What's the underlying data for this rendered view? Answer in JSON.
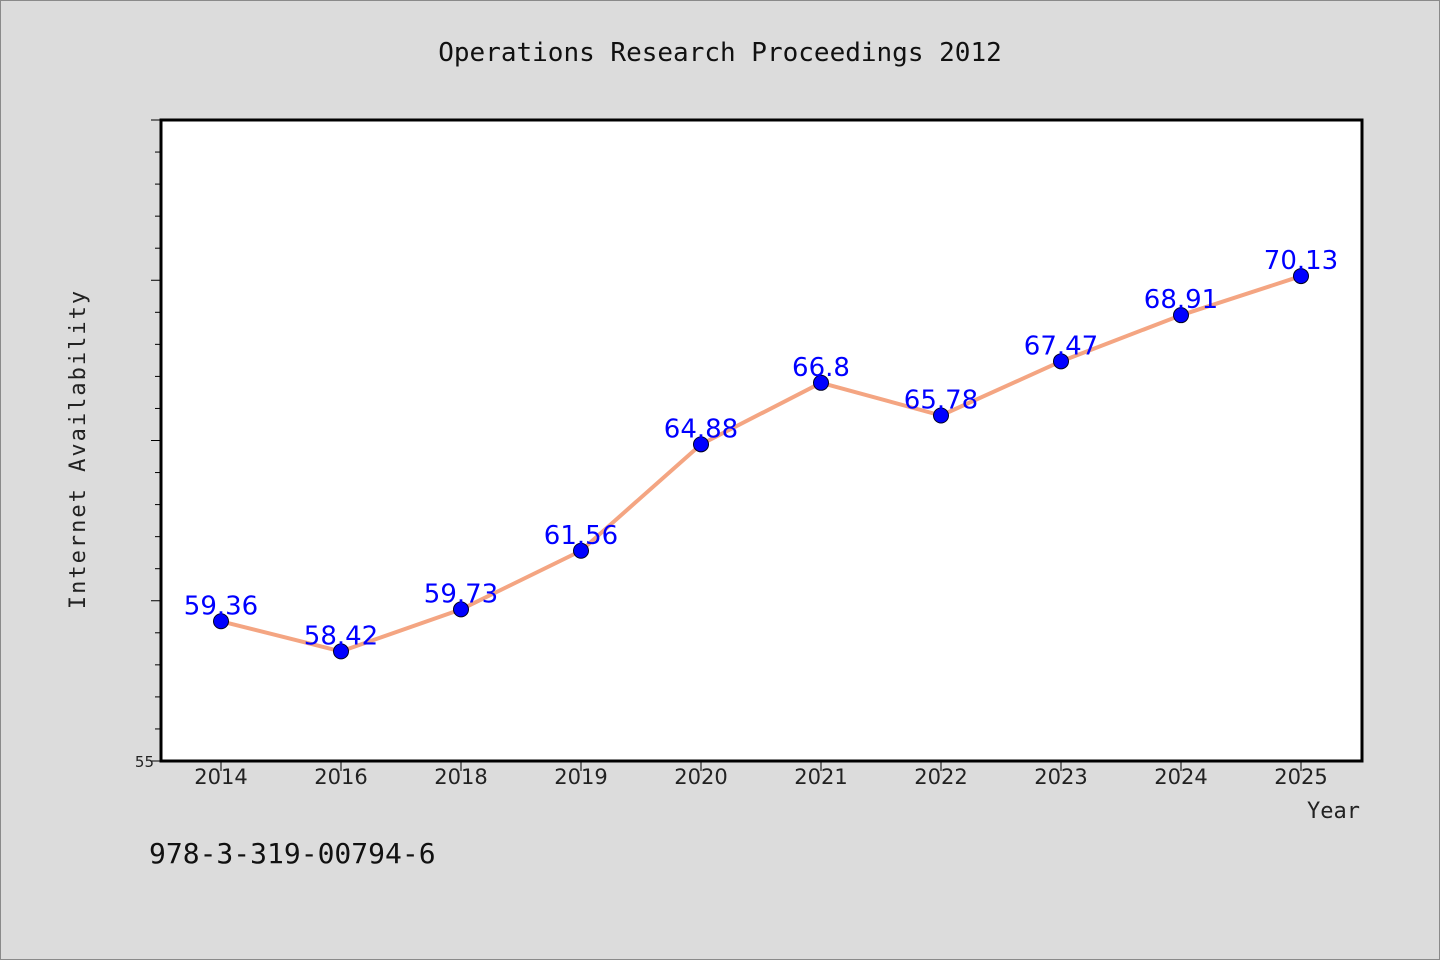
{
  "chart_data": {
    "type": "line",
    "title": "Operations Research Proceedings 2012",
    "xlabel": "Year",
    "ylabel": "Internet Availability",
    "categories": [
      "2014",
      "2016",
      "2018",
      "2019",
      "2020",
      "2021",
      "2022",
      "2023",
      "2024",
      "2025"
    ],
    "series": [
      {
        "values": [
          59.36,
          58.42,
          59.73,
          61.56,
          64.88,
          66.8,
          65.78,
          67.47,
          68.91,
          70.13
        ],
        "line_color": "#f4a582",
        "marker_color": "#0000ff"
      }
    ],
    "ylim": [
      55,
      75
    ],
    "yticks_labeled": [
      "55"
    ],
    "grid": false,
    "legend": "none"
  },
  "footer": {
    "isbn": "978-3-319-00794-6"
  }
}
